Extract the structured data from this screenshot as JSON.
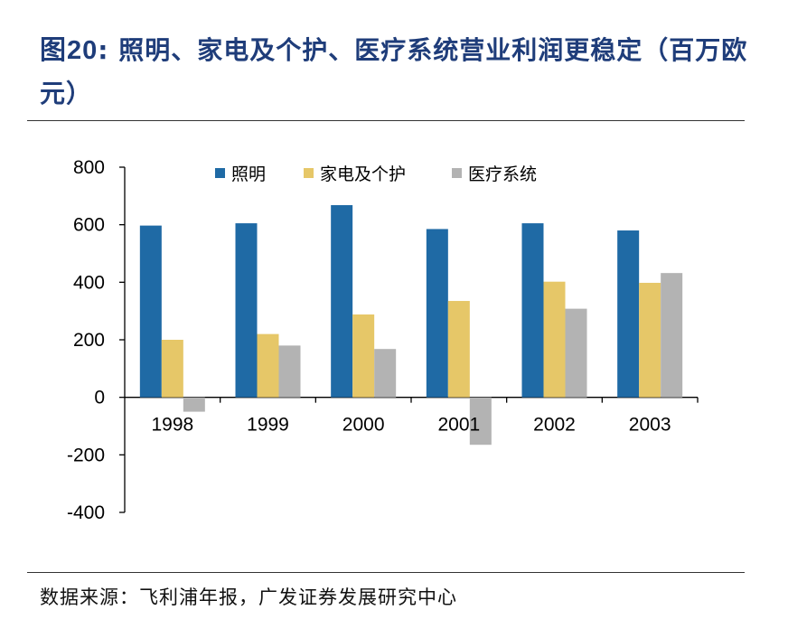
{
  "header": {
    "figure_number": "图20",
    "separator": ":",
    "title_text": "照明、家电及个护、医疗系统营业利润更稳定（百万欧元）"
  },
  "footer": {
    "source": "数据来源：飞利浦年报，广发证券发展研究中心"
  },
  "colors": {
    "lighting": "#1f6aa5",
    "appliances": "#e6c768",
    "medical": "#b3b3b3",
    "rule": "#333333",
    "title": "#1f3d7a"
  },
  "chart_data": {
    "type": "bar",
    "title": "照明、家电及个护、医疗系统营业利润更稳定（百万欧元）",
    "xlabel": "",
    "ylabel": "",
    "categories": [
      "1998",
      "1999",
      "2000",
      "2001",
      "2002",
      "2003"
    ],
    "series": [
      {
        "name": "照明",
        "values": [
          597,
          605,
          668,
          585,
          605,
          580
        ]
      },
      {
        "name": "家电及个护",
        "values": [
          200,
          220,
          288,
          335,
          402,
          398
        ]
      },
      {
        "name": "医疗系统",
        "values": [
          -50,
          180,
          168,
          -165,
          308,
          432
        ]
      }
    ],
    "ylim": [
      -400,
      800
    ],
    "yticks": [
      "800",
      "600",
      "400",
      "200",
      "0",
      "-200",
      "-400"
    ],
    "legend_position": "top",
    "grid": false
  }
}
